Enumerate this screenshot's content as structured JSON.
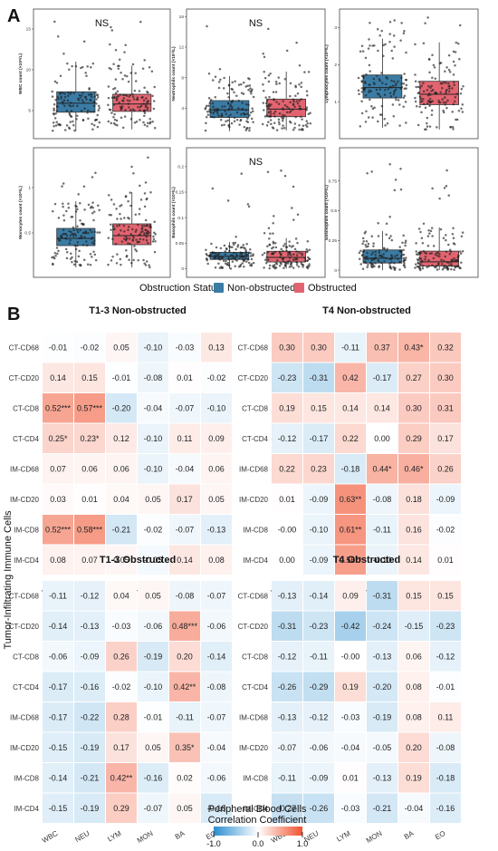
{
  "panel_a_label": "A",
  "panel_b_label": "B",
  "box_legend": {
    "title": "Obstruction Status",
    "items": [
      {
        "label": "Non-obstructed",
        "color": "#3a7ca5"
      },
      {
        "label": "Obstructed",
        "color": "#e36470"
      }
    ]
  },
  "heatmap_y_title": "Tumor-Infiltrating Immune Cells",
  "colorbar": {
    "title_line1": "Peripheral Blood Cells",
    "title_line2": "Correlation Coefficient",
    "min_label": "-1.0",
    "mid_label": "0.0",
    "max_label": "1.0",
    "low_color": "#2c8ed0",
    "mid_color": "#ffffff",
    "high_color": "#f0522f"
  },
  "chart_data": [
    {
      "type": "box",
      "ylabel": "WBC count (×10⁹/L)",
      "annotation": "NS",
      "yticks": [
        5,
        10,
        15
      ],
      "ylim": [
        2,
        17
      ],
      "groups": [
        {
          "name": "Non-obstructed",
          "q1": 4.8,
          "median": 5.9,
          "q3": 7.3,
          "wmin": 2.5,
          "wmax": 11.0,
          "n": 130,
          "seed": 11
        },
        {
          "name": "Obstructed",
          "q1": 4.9,
          "median": 5.8,
          "q3": 7.0,
          "wmin": 2.7,
          "wmax": 10.5,
          "n": 130,
          "seed": 12
        }
      ]
    },
    {
      "type": "box",
      "ylabel": "Neutrophils count (×10⁹/L)",
      "annotation": "NS",
      "yticks": [
        4,
        8,
        12,
        16
      ],
      "ylim": [
        0.5,
        16.5
      ],
      "groups": [
        {
          "name": "Non-obstructed",
          "q1": 2.8,
          "median": 3.8,
          "q3": 5.0,
          "wmin": 1.0,
          "wmax": 8.2,
          "n": 130,
          "seed": 21
        },
        {
          "name": "Obstructed",
          "q1": 2.9,
          "median": 3.9,
          "q3": 5.2,
          "wmin": 1.1,
          "wmax": 8.8,
          "n": 130,
          "seed": 22
        }
      ]
    },
    {
      "type": "box",
      "ylabel": "Lymphocytes count (×10⁹/L)",
      "annotation": "",
      "yticks": [
        1,
        2,
        3
      ],
      "ylim": [
        0.1,
        3.4
      ],
      "groups": [
        {
          "name": "Non-obstructed",
          "q1": 1.1,
          "median": 1.38,
          "q3": 1.72,
          "wmin": 0.3,
          "wmax": 2.7,
          "n": 130,
          "seed": 31
        },
        {
          "name": "Obstructed",
          "q1": 0.92,
          "median": 1.2,
          "q3": 1.55,
          "wmin": 0.25,
          "wmax": 2.6,
          "n": 130,
          "seed": 32
        }
      ]
    },
    {
      "type": "box",
      "ylabel": "Monocytes count (×10⁹/L)",
      "annotation": "",
      "yticks": [
        0.5,
        1.0
      ],
      "ylim": [
        0.05,
        1.4
      ],
      "groups": [
        {
          "name": "Non-obstructed",
          "q1": 0.36,
          "median": 0.44,
          "q3": 0.55,
          "wmin": 0.12,
          "wmax": 0.85,
          "n": 130,
          "seed": 41
        },
        {
          "name": "Obstructed",
          "q1": 0.37,
          "median": 0.47,
          "q3": 0.6,
          "wmin": 0.12,
          "wmax": 0.95,
          "n": 130,
          "seed": 42
        }
      ]
    },
    {
      "type": "box",
      "ylabel": "Basophils count (×10⁹/L)",
      "annotation": "NS",
      "yticks": [
        0.0,
        0.05,
        0.1,
        0.15,
        0.2
      ],
      "ylim": [
        -0.01,
        0.23
      ],
      "groups": [
        {
          "name": "Non-obstructed",
          "q1": 0.018,
          "median": 0.024,
          "q3": 0.032,
          "wmin": 0.0,
          "wmax": 0.052,
          "n": 130,
          "seed": 51
        },
        {
          "name": "Obstructed",
          "q1": 0.013,
          "median": 0.022,
          "q3": 0.034,
          "wmin": 0.0,
          "wmax": 0.06,
          "n": 130,
          "seed": 52
        }
      ]
    },
    {
      "type": "box",
      "ylabel": "Eosinophils count (×10⁹/L)",
      "annotation": "",
      "yticks": [
        0.0,
        0.25,
        0.5,
        0.75
      ],
      "ylim": [
        -0.03,
        1.0
      ],
      "groups": [
        {
          "name": "Non-obstructed",
          "q1": 0.06,
          "median": 0.1,
          "q3": 0.17,
          "wmin": 0.0,
          "wmax": 0.33,
          "n": 130,
          "seed": 61
        },
        {
          "name": "Obstructed",
          "q1": 0.035,
          "median": 0.07,
          "q3": 0.16,
          "wmin": 0.0,
          "wmax": 0.36,
          "n": 130,
          "seed": 62
        }
      ]
    },
    {
      "type": "heatmap",
      "title": "T1-3 Non-obstructed",
      "rows": [
        "CT-CD68",
        "CT-CD20",
        "CT-CD8",
        "CT-CD4",
        "IM-CD68",
        "IM-CD20",
        "IM-CD8",
        "IM-CD4"
      ],
      "cols": [
        "WBC",
        "NEU",
        "LYM",
        "MON",
        "BA",
        "EO"
      ],
      "values": [
        [
          -0.01,
          -0.02,
          0.05,
          -0.1,
          -0.03,
          0.13
        ],
        [
          0.14,
          0.15,
          -0.01,
          -0.08,
          0.01,
          -0.02
        ],
        [
          0.52,
          0.57,
          -0.2,
          -0.04,
          -0.07,
          -0.1
        ],
        [
          0.25,
          0.23,
          0.12,
          -0.1,
          0.11,
          0.09
        ],
        [
          0.07,
          0.06,
          0.06,
          -0.1,
          -0.04,
          0.06
        ],
        [
          0.03,
          0.01,
          0.04,
          0.05,
          0.17,
          0.05
        ],
        [
          0.52,
          0.58,
          -0.21,
          -0.02,
          -0.07,
          -0.13
        ],
        [
          0.08,
          0.07,
          0.05,
          -0.05,
          0.14,
          0.08
        ]
      ],
      "labels": [
        [
          "-0.01",
          "-0.02",
          "0.05",
          "-0.10",
          "-0.03",
          "0.13"
        ],
        [
          "0.14",
          "0.15",
          "-0.01",
          "-0.08",
          "0.01",
          "-0.02"
        ],
        [
          "0.52***",
          "0.57***",
          "-0.20",
          "-0.04",
          "-0.07",
          "-0.10"
        ],
        [
          "0.25*",
          "0.23*",
          "0.12",
          "-0.10",
          "0.11",
          "0.09"
        ],
        [
          "0.07",
          "0.06",
          "0.06",
          "-0.10",
          "-0.04",
          "0.06"
        ],
        [
          "0.03",
          "0.01",
          "0.04",
          "0.05",
          "0.17",
          "0.05"
        ],
        [
          "0.52***",
          "0.58***",
          "-0.21",
          "-0.02",
          "-0.07",
          "-0.13"
        ],
        [
          "0.08",
          "0.07",
          "0.05",
          "-0.05",
          "0.14",
          "0.08"
        ]
      ]
    },
    {
      "type": "heatmap",
      "title": "T4 Non-obstructed",
      "rows": [
        "CT-CD68",
        "CT-CD20",
        "CT-CD8",
        "CT-CD4",
        "IM-CD68",
        "IM-CD20",
        "IM-CD8",
        "IM-CD4"
      ],
      "cols": [
        "WBC",
        "NEU",
        "LYM",
        "MON",
        "BA",
        "EO"
      ],
      "values": [
        [
          0.3,
          0.3,
          -0.11,
          0.37,
          0.43,
          0.32
        ],
        [
          -0.23,
          -0.31,
          0.42,
          -0.17,
          0.27,
          0.3
        ],
        [
          0.19,
          0.15,
          0.14,
          0.14,
          0.3,
          0.31
        ],
        [
          -0.12,
          -0.17,
          0.22,
          0.0,
          0.29,
          0.17
        ],
        [
          0.22,
          0.23,
          -0.18,
          0.44,
          0.46,
          0.26
        ],
        [
          0.01,
          -0.09,
          0.63,
          -0.08,
          0.18,
          -0.09
        ],
        [
          -0.0,
          -0.1,
          0.61,
          -0.11,
          0.16,
          -0.02
        ],
        [
          0.0,
          -0.09,
          0.56,
          -0.1,
          0.14,
          0.01
        ]
      ],
      "labels": [
        [
          "0.30",
          "0.30",
          "-0.11",
          "0.37",
          "0.43*",
          "0.32"
        ],
        [
          "-0.23",
          "-0.31",
          "0.42",
          "-0.17",
          "0.27",
          "0.30"
        ],
        [
          "0.19",
          "0.15",
          "0.14",
          "0.14",
          "0.30",
          "0.31"
        ],
        [
          "-0.12",
          "-0.17",
          "0.22",
          "0.00",
          "0.29",
          "0.17"
        ],
        [
          "0.22",
          "0.23",
          "-0.18",
          "0.44*",
          "0.46*",
          "0.26"
        ],
        [
          "0.01",
          "-0.09",
          "0.63**",
          "-0.08",
          "0.18",
          "-0.09"
        ],
        [
          "-0.00",
          "-0.10",
          "0.61**",
          "-0.11",
          "0.16",
          "-0.02"
        ],
        [
          "0.00",
          "-0.09",
          "0.56**",
          "-0.10",
          "0.14",
          "0.01"
        ]
      ]
    },
    {
      "type": "heatmap",
      "title": "T1-3 Obstructed",
      "rows": [
        "CT-CD68",
        "CT-CD20",
        "CT-CD8",
        "CT-CD4",
        "IM-CD68",
        "IM-CD20",
        "IM-CD8",
        "IM-CD4"
      ],
      "cols": [
        "WBC",
        "NEU",
        "LYM",
        "MON",
        "BA",
        "EO"
      ],
      "values": [
        [
          -0.11,
          -0.12,
          0.04,
          0.05,
          -0.08,
          -0.07
        ],
        [
          -0.14,
          -0.13,
          -0.03,
          -0.06,
          0.48,
          -0.06
        ],
        [
          -0.06,
          -0.09,
          0.26,
          -0.19,
          0.2,
          -0.14
        ],
        [
          -0.17,
          -0.16,
          -0.02,
          -0.1,
          0.42,
          -0.08
        ],
        [
          -0.17,
          -0.22,
          0.28,
          -0.01,
          -0.11,
          -0.07
        ],
        [
          -0.15,
          -0.19,
          0.17,
          0.05,
          0.35,
          -0.04
        ],
        [
          -0.14,
          -0.21,
          0.42,
          -0.16,
          0.02,
          -0.06
        ],
        [
          -0.15,
          -0.19,
          0.29,
          -0.07,
          0.05,
          -0.18
        ]
      ],
      "labels": [
        [
          "-0.11",
          "-0.12",
          "0.04",
          "0.05",
          "-0.08",
          "-0.07"
        ],
        [
          "-0.14",
          "-0.13",
          "-0.03",
          "-0.06",
          "0.48***",
          "-0.06"
        ],
        [
          "-0.06",
          "-0.09",
          "0.26",
          "-0.19",
          "0.20",
          "-0.14"
        ],
        [
          "-0.17",
          "-0.16",
          "-0.02",
          "-0.10",
          "0.42**",
          "-0.08"
        ],
        [
          "-0.17",
          "-0.22",
          "0.28",
          "-0.01",
          "-0.11",
          "-0.07"
        ],
        [
          "-0.15",
          "-0.19",
          "0.17",
          "0.05",
          "0.35*",
          "-0.04"
        ],
        [
          "-0.14",
          "-0.21",
          "0.42**",
          "-0.16",
          "0.02",
          "-0.06"
        ],
        [
          "-0.15",
          "-0.19",
          "0.29",
          "-0.07",
          "0.05",
          "-0.18"
        ]
      ]
    },
    {
      "type": "heatmap",
      "title": "T4 Obstructed",
      "rows": [
        "CT-CD68",
        "CT-CD20",
        "CT-CD8",
        "CT-CD4",
        "IM-CD68",
        "IM-CD20",
        "IM-CD8",
        "IM-CD4"
      ],
      "cols": [
        "WBC",
        "NEU",
        "LYM",
        "MON",
        "BA",
        "EO"
      ],
      "values": [
        [
          -0.13,
          -0.14,
          0.09,
          -0.31,
          0.15,
          0.15
        ],
        [
          -0.31,
          -0.23,
          -0.42,
          -0.24,
          -0.15,
          -0.23
        ],
        [
          -0.12,
          -0.11,
          -0.0,
          -0.13,
          0.06,
          -0.12
        ],
        [
          -0.26,
          -0.29,
          0.19,
          -0.2,
          0.08,
          -0.01
        ],
        [
          -0.13,
          -0.12,
          -0.03,
          -0.19,
          0.08,
          0.11
        ],
        [
          -0.07,
          -0.06,
          -0.04,
          -0.05,
          0.2,
          -0.08
        ],
        [
          -0.11,
          -0.09,
          0.01,
          -0.13,
          0.19,
          -0.18
        ],
        [
          -0.27,
          -0.26,
          -0.03,
          -0.21,
          -0.04,
          -0.16
        ]
      ],
      "labels": [
        [
          "-0.13",
          "-0.14",
          "0.09",
          "-0.31",
          "0.15",
          "0.15"
        ],
        [
          "-0.31",
          "-0.23",
          "-0.42",
          "-0.24",
          "-0.15",
          "-0.23"
        ],
        [
          "-0.12",
          "-0.11",
          "-0.00",
          "-0.13",
          "0.06",
          "-0.12"
        ],
        [
          "-0.26",
          "-0.29",
          "0.19",
          "-0.20",
          "0.08",
          "-0.01"
        ],
        [
          "-0.13",
          "-0.12",
          "-0.03",
          "-0.19",
          "0.08",
          "0.11"
        ],
        [
          "-0.07",
          "-0.06",
          "-0.04",
          "-0.05",
          "0.20",
          "-0.08"
        ],
        [
          "-0.11",
          "-0.09",
          "0.01",
          "-0.13",
          "0.19",
          "-0.18"
        ],
        [
          "-0.27",
          "-0.26",
          "-0.03",
          "-0.21",
          "-0.04",
          "-0.16"
        ]
      ]
    }
  ]
}
